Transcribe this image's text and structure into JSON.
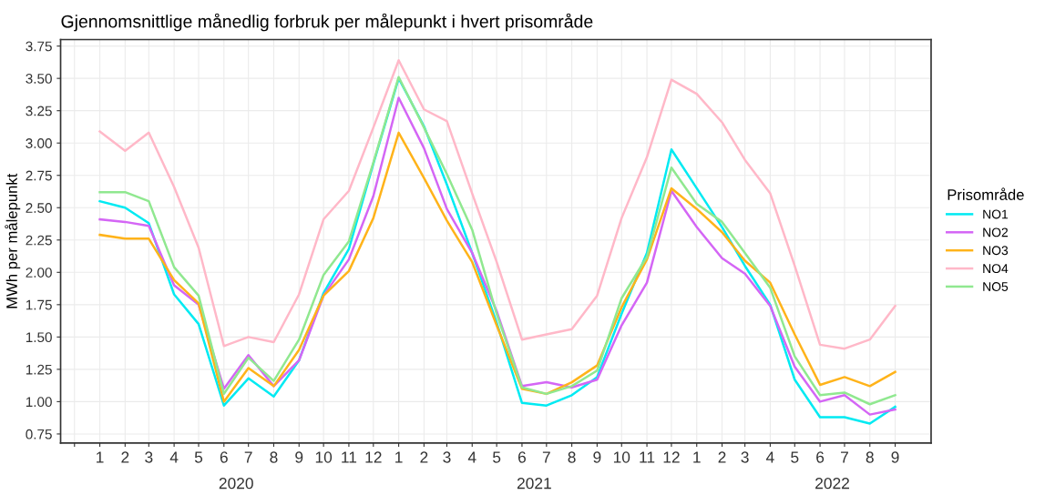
{
  "chart_data": {
    "type": "line",
    "title": "Gjennomsnittlige månedlig forbruk per målepunkt i hvert prisområde",
    "ylabel": "MWh per målepunkt",
    "legend_title": "Prisområde",
    "legend": "right",
    "grid": true,
    "line_style": "solid",
    "x": [
      "2020-01",
      "2020-02",
      "2020-03",
      "2020-04",
      "2020-05",
      "2020-06",
      "2020-07",
      "2020-08",
      "2020-09",
      "2020-10",
      "2020-11",
      "2020-12",
      "2021-01",
      "2021-02",
      "2021-03",
      "2021-04",
      "2021-05",
      "2021-06",
      "2021-07",
      "2021-08",
      "2021-09",
      "2021-10",
      "2021-11",
      "2021-12",
      "2022-01",
      "2022-02",
      "2022-03",
      "2022-04",
      "2022-05",
      "2022-06",
      "2022-07",
      "2022-08",
      "2022-09"
    ],
    "series": [
      {
        "name": "NO1",
        "color": "#00eaf2",
        "values": [
          2.55,
          2.5,
          2.38,
          1.83,
          1.6,
          0.97,
          1.18,
          1.04,
          1.32,
          1.84,
          2.18,
          2.84,
          3.5,
          3.13,
          2.68,
          2.15,
          1.61,
          0.99,
          0.97,
          1.05,
          1.19,
          1.68,
          2.15,
          2.95,
          2.65,
          2.35,
          2.05,
          1.75,
          1.17,
          0.88,
          0.88,
          0.83,
          0.96
        ]
      },
      {
        "name": "NO2",
        "color": "#d466f5",
        "values": [
          2.41,
          2.39,
          2.36,
          1.9,
          1.75,
          1.1,
          1.36,
          1.12,
          1.32,
          1.82,
          2.1,
          2.59,
          3.35,
          2.96,
          2.49,
          2.15,
          1.7,
          1.12,
          1.15,
          1.11,
          1.17,
          1.59,
          1.92,
          2.63,
          2.35,
          2.11,
          1.99,
          1.74,
          1.27,
          1.0,
          1.05,
          0.9,
          0.94
        ]
      },
      {
        "name": "NO3",
        "color": "#ffb31a",
        "values": [
          2.29,
          2.26,
          2.26,
          1.94,
          1.76,
          1.0,
          1.26,
          1.12,
          1.4,
          1.82,
          2.01,
          2.42,
          3.08,
          2.73,
          2.4,
          2.08,
          1.59,
          1.1,
          1.06,
          1.15,
          1.28,
          1.73,
          2.1,
          2.65,
          2.49,
          2.31,
          2.09,
          1.92,
          1.52,
          1.13,
          1.19,
          1.12,
          1.23
        ]
      },
      {
        "name": "NO4",
        "color": "#ffb8c8",
        "values": [
          3.09,
          2.94,
          3.08,
          2.66,
          2.19,
          1.43,
          1.5,
          1.46,
          1.83,
          2.41,
          2.63,
          3.12,
          3.64,
          3.26,
          3.17,
          2.61,
          2.08,
          1.48,
          1.52,
          1.56,
          1.82,
          2.42,
          2.89,
          3.49,
          3.38,
          3.16,
          2.87,
          2.61,
          2.05,
          1.44,
          1.41,
          1.48,
          1.74
        ]
      },
      {
        "name": "NO5",
        "color": "#90e890",
        "values": [
          2.62,
          2.62,
          2.55,
          2.04,
          1.82,
          1.06,
          1.34,
          1.16,
          1.48,
          1.98,
          2.24,
          2.85,
          3.51,
          3.12,
          2.76,
          2.33,
          1.68,
          1.11,
          1.06,
          1.12,
          1.24,
          1.8,
          2.12,
          2.81,
          2.53,
          2.39,
          2.15,
          1.88,
          1.35,
          1.05,
          1.07,
          0.98,
          1.05
        ]
      }
    ],
    "xlim": [
      "2019-11-14",
      "2022-10-15"
    ],
    "xticks": [
      {
        "value": "2019-12",
        "label": null
      },
      {
        "value": "2020-01",
        "label": "1"
      },
      {
        "value": "2020-02",
        "label": "2"
      },
      {
        "value": "2020-03",
        "label": "3"
      },
      {
        "value": "2020-04",
        "label": "4"
      },
      {
        "value": "2020-05",
        "label": "5"
      },
      {
        "value": "2020-06",
        "label": "6"
      },
      {
        "value": "2020-07",
        "label": "7"
      },
      {
        "value": "2020-08",
        "label": "8"
      },
      {
        "value": "2020-09",
        "label": "9"
      },
      {
        "value": "2020-10",
        "label": "10"
      },
      {
        "value": "2020-11",
        "label": "11"
      },
      {
        "value": "2020-12",
        "label": "12"
      },
      {
        "value": "2021-01",
        "label": "1"
      },
      {
        "value": "2021-02",
        "label": "2"
      },
      {
        "value": "2021-03",
        "label": "3"
      },
      {
        "value": "2021-04",
        "label": "4"
      },
      {
        "value": "2021-05",
        "label": "5"
      },
      {
        "value": "2021-06",
        "label": "6"
      },
      {
        "value": "2021-07",
        "label": "7"
      },
      {
        "value": "2021-08",
        "label": "8"
      },
      {
        "value": "2021-09",
        "label": "9"
      },
      {
        "value": "2021-10",
        "label": "10"
      },
      {
        "value": "2021-11",
        "label": "11"
      },
      {
        "value": "2021-12",
        "label": "12"
      },
      {
        "value": "2022-01",
        "label": "1"
      },
      {
        "value": "2022-02",
        "label": "2"
      },
      {
        "value": "2022-03",
        "label": "3"
      },
      {
        "value": "2022-04",
        "label": "4"
      },
      {
        "value": "2022-05",
        "label": "5"
      },
      {
        "value": "2022-06",
        "label": "6"
      },
      {
        "value": "2022-07",
        "label": "7"
      },
      {
        "value": "2022-08",
        "label": "8"
      },
      {
        "value": "2022-09",
        "label": "9"
      }
    ],
    "ylim": [
      0.68,
      3.8
    ],
    "yticks": [
      {
        "value": 0.75,
        "label": "0.75"
      },
      {
        "value": 1,
        "label": "1.00"
      },
      {
        "value": 1.25,
        "label": "1.25"
      },
      {
        "value": 1.5,
        "label": "1.50"
      },
      {
        "value": 1.75,
        "label": "1.75"
      },
      {
        "value": 2,
        "label": "2.00"
      },
      {
        "value": 2.25,
        "label": "2.25"
      },
      {
        "value": 2.5,
        "label": "2.50"
      },
      {
        "value": 2.75,
        "label": "2.75"
      },
      {
        "value": 3,
        "label": "3.00"
      },
      {
        "value": 3.25,
        "label": "3.25"
      },
      {
        "value": 3.5,
        "label": "3.50"
      },
      {
        "value": 3.75,
        "label": "3.75"
      }
    ],
    "annotations": [
      "2020",
      "2021",
      "2022"
    ]
  }
}
